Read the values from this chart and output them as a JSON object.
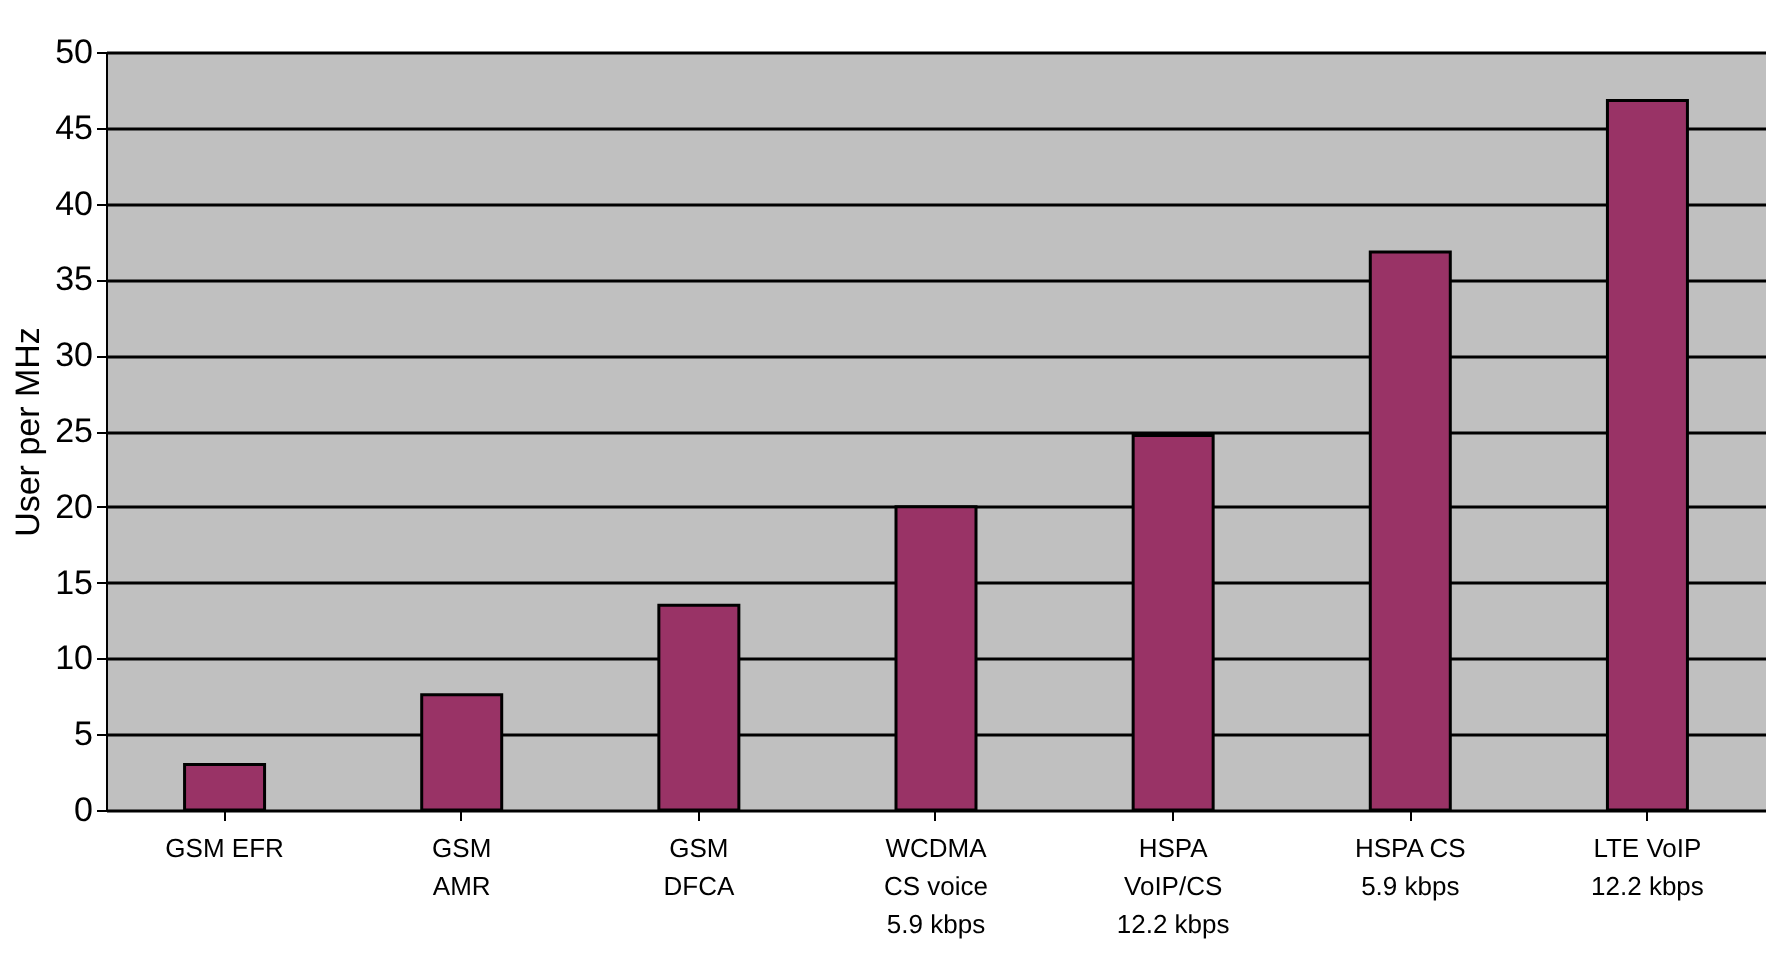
{
  "chart_data": {
    "type": "bar",
    "ylabel": "User per MHz",
    "categories": [
      "GSM EFR",
      "GSM\nAMR",
      "GSM\nDFCA",
      "WCDMA\nCS voice\n5.9 kbps",
      "HSPA\nVoIP/CS\n12.2 kbps",
      "HSPA CS\n5.9 kbps",
      "LTE VoIP\n12.2 kbps"
    ],
    "values": [
      3,
      7.6,
      13.5,
      20,
      24.7,
      36.8,
      46.8
    ],
    "color": "#993366",
    "ylim": [
      0,
      50
    ],
    "yticks": [
      0,
      5,
      10,
      15,
      20,
      25,
      30,
      35,
      40,
      45,
      50
    ],
    "grid": "y"
  }
}
